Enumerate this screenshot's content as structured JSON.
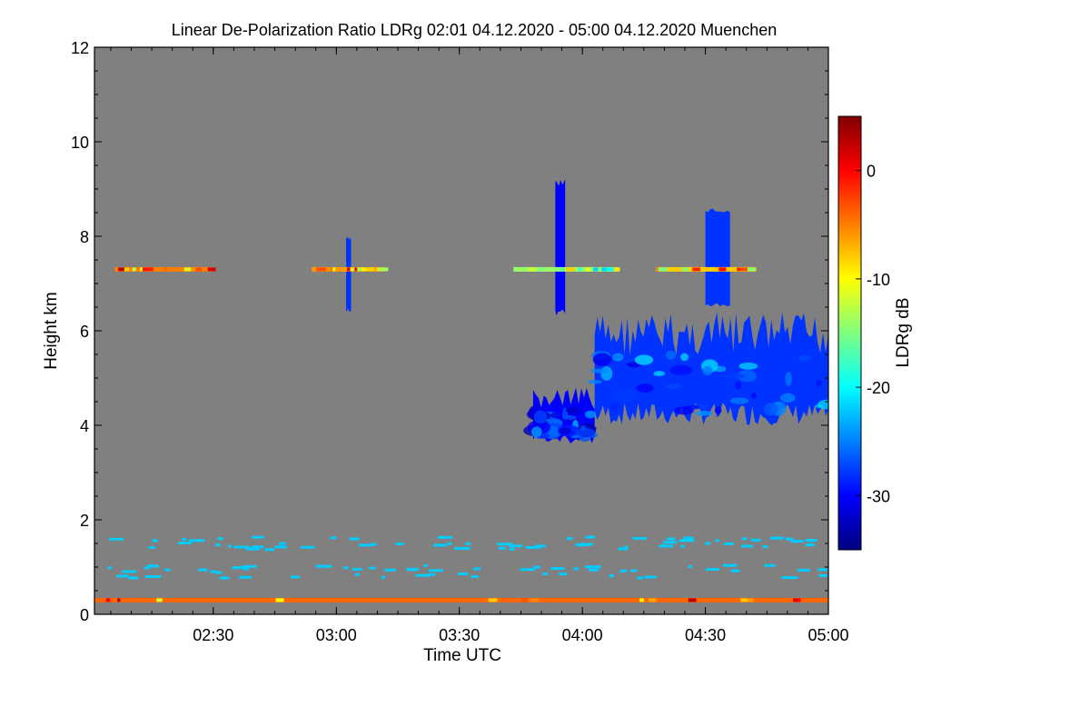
{
  "chart_data": {
    "type": "heatmap",
    "title": "Linear De-Polarization Ratio LDRg   02:01 04.12.2020 - 05:00 04.12.2020 Muenchen",
    "xlabel": "Time UTC",
    "ylabel": "Height km",
    "xlim": [
      2.017,
      5.0
    ],
    "ylim": [
      0,
      12
    ],
    "x_ticks": [
      {
        "value": 2.5,
        "label": "02:30"
      },
      {
        "value": 3.0,
        "label": "03:00"
      },
      {
        "value": 3.5,
        "label": "03:30"
      },
      {
        "value": 4.0,
        "label": "04:00"
      },
      {
        "value": 4.5,
        "label": "04:30"
      },
      {
        "value": 5.0,
        "label": "05:00"
      }
    ],
    "y_ticks": [
      {
        "value": 0,
        "label": "0"
      },
      {
        "value": 2,
        "label": "2"
      },
      {
        "value": 4,
        "label": "4"
      },
      {
        "value": 6,
        "label": "6"
      },
      {
        "value": 8,
        "label": "8"
      },
      {
        "value": 10,
        "label": "10"
      },
      {
        "value": 12,
        "label": "12"
      }
    ],
    "colorbar": {
      "label": "LDRg dB",
      "range": [
        -35,
        5
      ],
      "ticks": [
        {
          "value": 0,
          "label": "0"
        },
        {
          "value": -10,
          "label": "-10"
        },
        {
          "value": -20,
          "label": "-20"
        },
        {
          "value": -30,
          "label": "-30"
        }
      ],
      "colors": [
        "#00007f",
        "#0000ff",
        "#007fff",
        "#00ffff",
        "#7fff7f",
        "#ffff00",
        "#ff7f00",
        "#ff0000",
        "#7f0000"
      ]
    },
    "background_color": "#808080",
    "features": [
      {
        "name": "main-cloud",
        "kind": "cloud",
        "x_start": 4.05,
        "x_end": 5.0,
        "y_bottom": 4.0,
        "y_top": 6.4,
        "ldr_db": -28
      },
      {
        "name": "cloud-lower-left",
        "kind": "cloud",
        "x_start": 3.8,
        "x_end": 4.05,
        "y_bottom": 3.6,
        "y_top": 4.8,
        "ldr_db": -30
      },
      {
        "name": "fallstreak-1",
        "kind": "streak",
        "x_start": 3.04,
        "x_end": 3.06,
        "y_bottom": 6.4,
        "y_top": 8.0,
        "ldr_db": -28
      },
      {
        "name": "fallstreak-2",
        "kind": "streak",
        "x_start": 3.89,
        "x_end": 3.93,
        "y_bottom": 6.3,
        "y_top": 9.2,
        "ldr_db": -30
      },
      {
        "name": "fallstreak-3",
        "kind": "streak",
        "x_start": 4.5,
        "x_end": 4.6,
        "y_bottom": 6.5,
        "y_top": 8.6,
        "ldr_db": -28
      },
      {
        "name": "layer-7.3km-a",
        "kind": "layer",
        "x_start": 2.1,
        "x_end": 2.5,
        "y": 7.3,
        "ldr_db": -5
      },
      {
        "name": "layer-7.3km-b",
        "kind": "layer",
        "x_start": 2.9,
        "x_end": 3.2,
        "y": 7.3,
        "ldr_db": -6
      },
      {
        "name": "layer-7.3km-c",
        "kind": "layer",
        "x_start": 3.72,
        "x_end": 4.15,
        "y": 7.3,
        "ldr_db": -14
      },
      {
        "name": "layer-7.3km-d",
        "kind": "layer",
        "x_start": 4.3,
        "x_end": 4.7,
        "y": 7.3,
        "ldr_db": -8
      },
      {
        "name": "surface-layer",
        "kind": "layer",
        "x_start": 2.017,
        "x_end": 5.0,
        "y": 0.3,
        "ldr_db": -4
      },
      {
        "name": "boundary-specks-1.5km",
        "kind": "specks",
        "x_start": 2.05,
        "x_end": 5.0,
        "y": 1.5,
        "ldr_db": -22
      },
      {
        "name": "boundary-specks-0.9km",
        "kind": "specks",
        "x_start": 2.05,
        "x_end": 5.0,
        "y": 0.9,
        "ldr_db": -22
      }
    ]
  }
}
